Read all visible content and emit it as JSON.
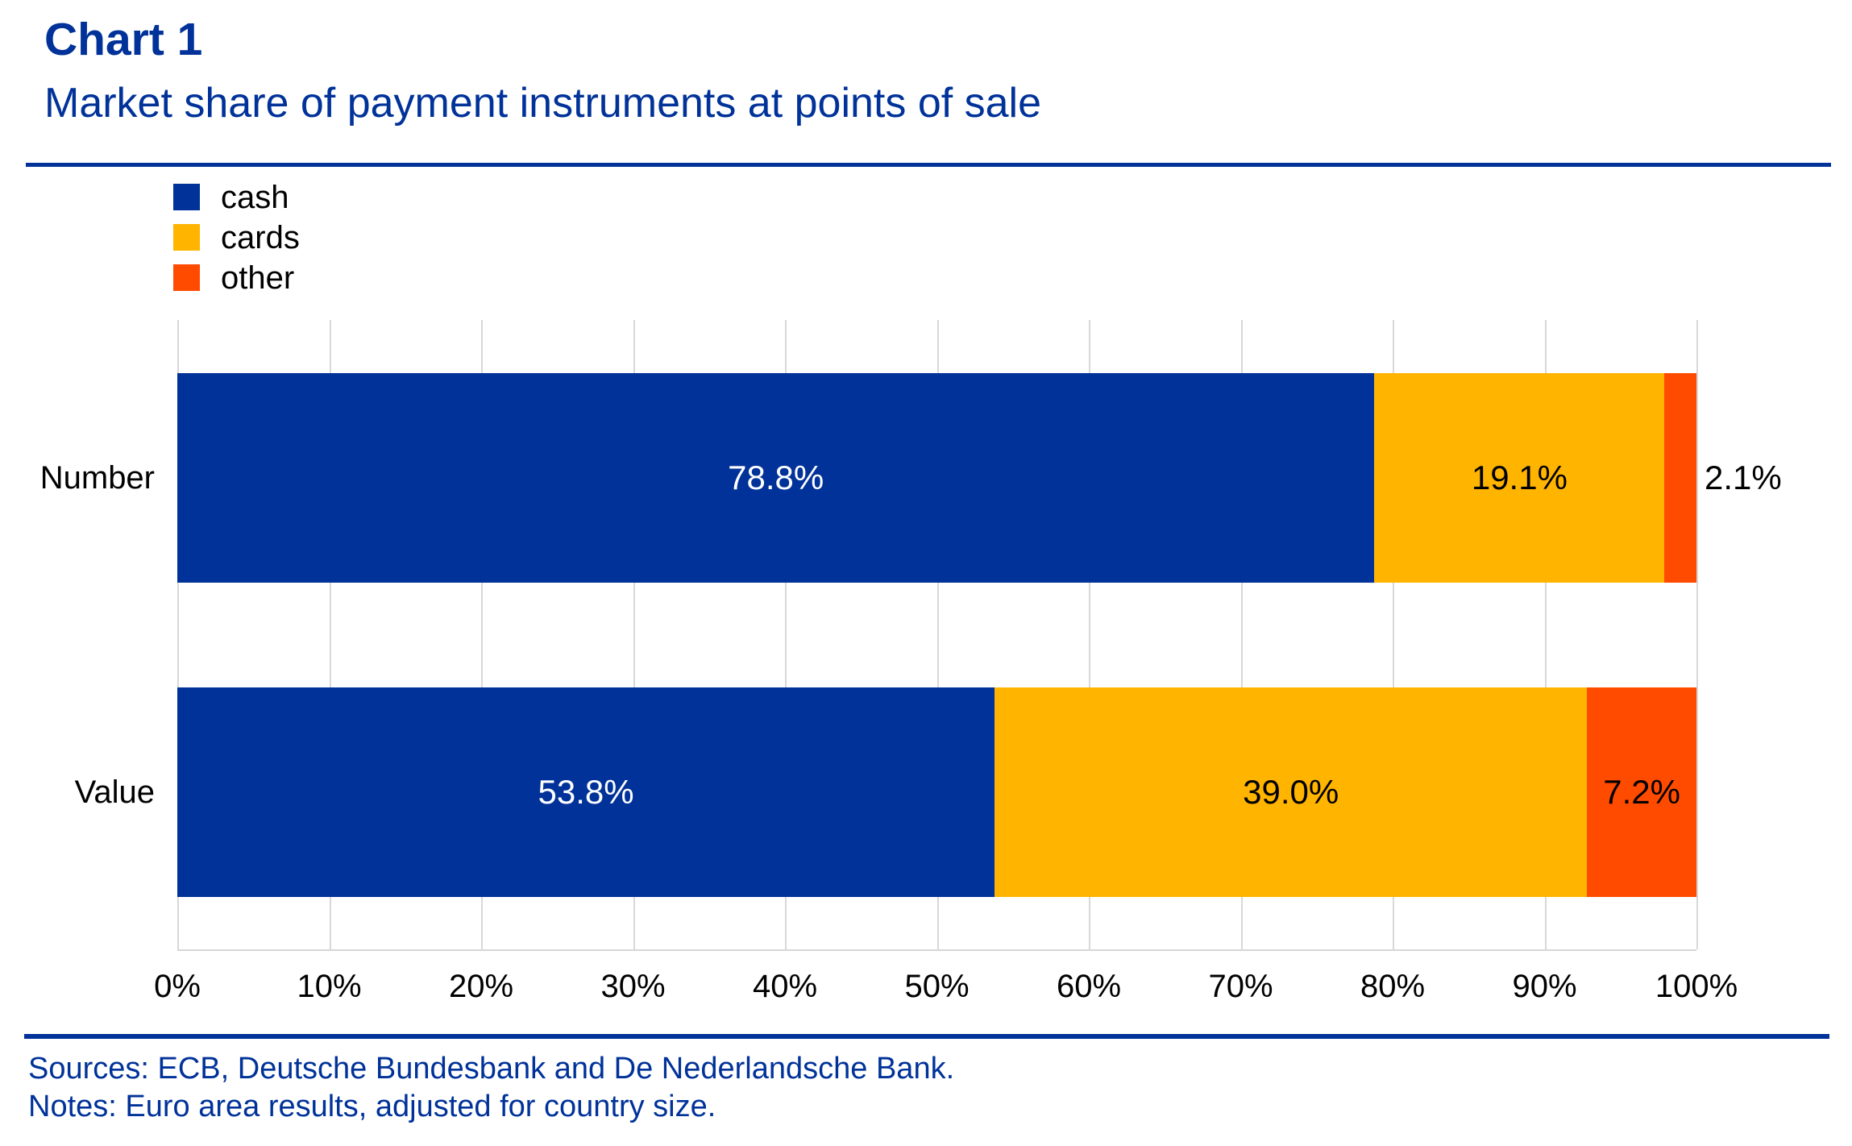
{
  "header": {
    "title": "Chart 1",
    "subtitle": "Market share of payment instruments at points of sale"
  },
  "chart_data": {
    "type": "bar",
    "orientation": "horizontal",
    "stacked": true,
    "title": "Market share of payment instruments at points of sale",
    "categories": [
      "Number",
      "Value"
    ],
    "series": [
      {
        "name": "cash",
        "color": "#003299",
        "values": [
          78.8,
          53.8
        ]
      },
      {
        "name": "cards",
        "color": "#FFB400",
        "values": [
          19.1,
          39.0
        ]
      },
      {
        "name": "other",
        "color": "#FF4B00",
        "values": [
          2.1,
          7.2
        ]
      }
    ],
    "data_labels": [
      [
        "78.8%",
        "19.1%",
        "2.1%"
      ],
      [
        "53.8%",
        "39.0%",
        "7.2%"
      ]
    ],
    "label_colors": [
      [
        "#FFFFFF",
        "#000000",
        "#000000"
      ],
      [
        "#FFFFFF",
        "#000000",
        "#000000"
      ]
    ],
    "outside_labels": [
      [
        false,
        false,
        true
      ],
      [
        false,
        false,
        false
      ]
    ],
    "legend": [
      "cash",
      "cards",
      "other"
    ],
    "legend_position": "top-left",
    "xlabel": "",
    "ylabel": "",
    "xlim": [
      0,
      100
    ],
    "x_ticks": [
      "0%",
      "10%",
      "20%",
      "30%",
      "40%",
      "50%",
      "60%",
      "70%",
      "80%",
      "90%",
      "100%"
    ],
    "grid": "vertical"
  },
  "footer": {
    "sources": "Sources: ECB, Deutsche Bundesbank and De Nederlandsche Bank.",
    "notes": "Notes: Euro area results, adjusted for country size."
  },
  "colors": {
    "accent_blue": "#003299",
    "cash": "#003299",
    "cards": "#FFB400",
    "other": "#FF4B00",
    "gridline": "#D8D8D8",
    "text": "#000000",
    "inside_label_on_cash": "#FFFFFF"
  }
}
